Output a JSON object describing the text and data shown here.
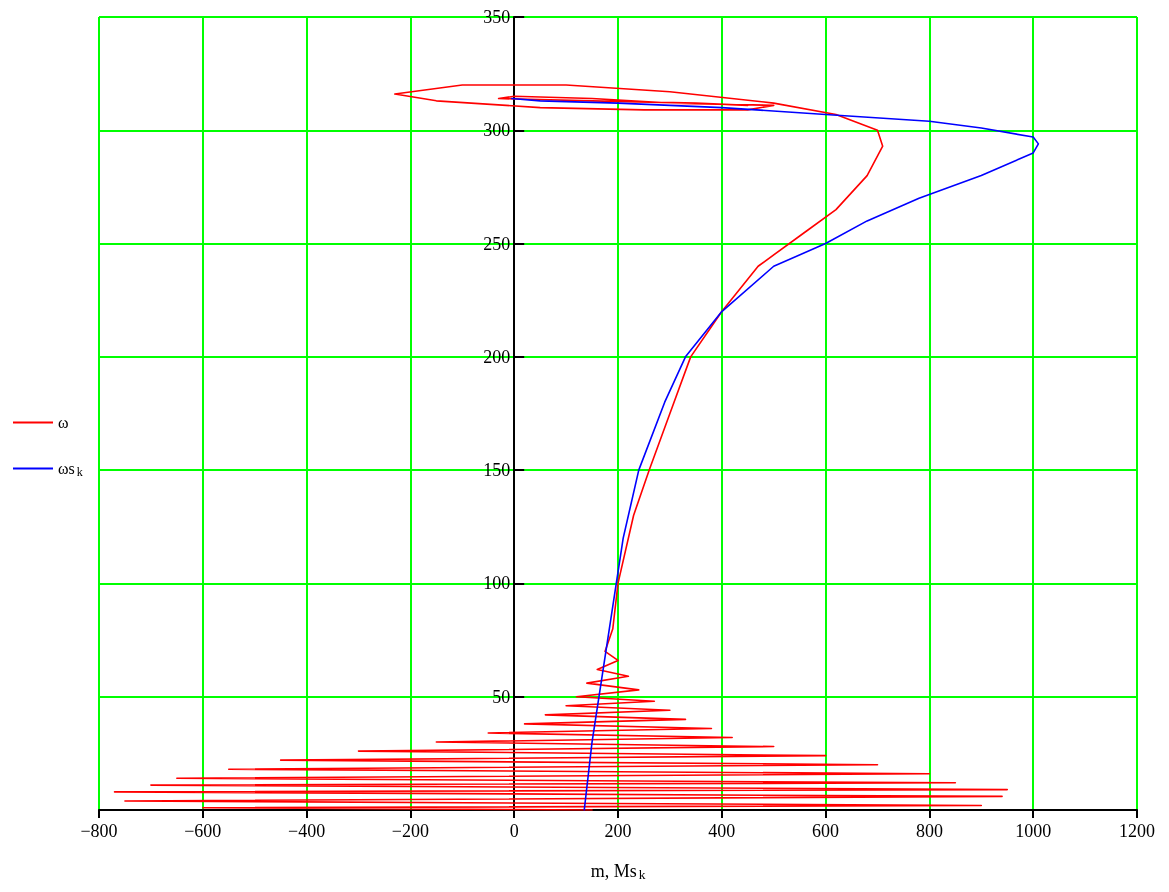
{
  "chart_data": {
    "type": "line",
    "xlabel": "m, Ms$_{k}$",
    "xlim": [
      -800,
      1200
    ],
    "xticks": [
      -800,
      -600,
      -400,
      -200,
      0,
      200,
      400,
      600,
      800,
      1000,
      1200
    ],
    "ylim": [
      0,
      350
    ],
    "yticks": [
      {
        "value": 0,
        "label": null
      },
      50,
      100,
      150,
      200,
      250,
      300,
      350
    ],
    "grid": true,
    "legend": "left",
    "marker": "none",
    "line_style": "solid",
    "series": [
      {
        "name": "ω",
        "color": "#ff0000",
        "x": [
          150,
          -600,
          900,
          -750,
          940,
          -770,
          950,
          -700,
          850,
          -650,
          800,
          -550,
          700,
          -450,
          600,
          -300,
          500,
          -150,
          420,
          -50,
          380,
          20,
          330,
          60,
          300,
          100,
          270,
          120,
          240,
          140,
          220,
          160,
          200,
          175,
          190,
          200,
          230,
          260,
          300,
          340,
          400,
          470,
          560,
          620,
          680,
          710,
          700,
          620,
          500,
          300,
          100,
          -100,
          -230,
          -150,
          50,
          250,
          450,
          500,
          300,
          150,
          0,
          -30,
          150,
          350,
          450
        ],
        "values": [
          0,
          1,
          2,
          4,
          6,
          8,
          9,
          11,
          12,
          14,
          16,
          18,
          20,
          22,
          24,
          26,
          28,
          30,
          32,
          34,
          36,
          38,
          40,
          42,
          44,
          46,
          48,
          50,
          53,
          56,
          59,
          62,
          66,
          70,
          80,
          100,
          130,
          150,
          175,
          200,
          220,
          240,
          255,
          265,
          280,
          293,
          300,
          307,
          312,
          317,
          320,
          320,
          316,
          313,
          310,
          309,
          309,
          311,
          312,
          314,
          315,
          314,
          313,
          312,
          311
        ]
      },
      {
        "name": "ωs$_{k}$",
        "color": "#0000ff",
        "x": [
          135,
          150,
          170,
          190,
          210,
          240,
          290,
          330,
          400,
          500,
          600,
          680,
          780,
          900,
          1000,
          1010,
          1000,
          900,
          800,
          600,
          400,
          200,
          50,
          -5
        ],
        "values": [
          0,
          30,
          60,
          90,
          120,
          150,
          180,
          200,
          220,
          240,
          250,
          260,
          270,
          280,
          290,
          294,
          297,
          301,
          304,
          307,
          310,
          312,
          313,
          314
        ]
      }
    ]
  }
}
